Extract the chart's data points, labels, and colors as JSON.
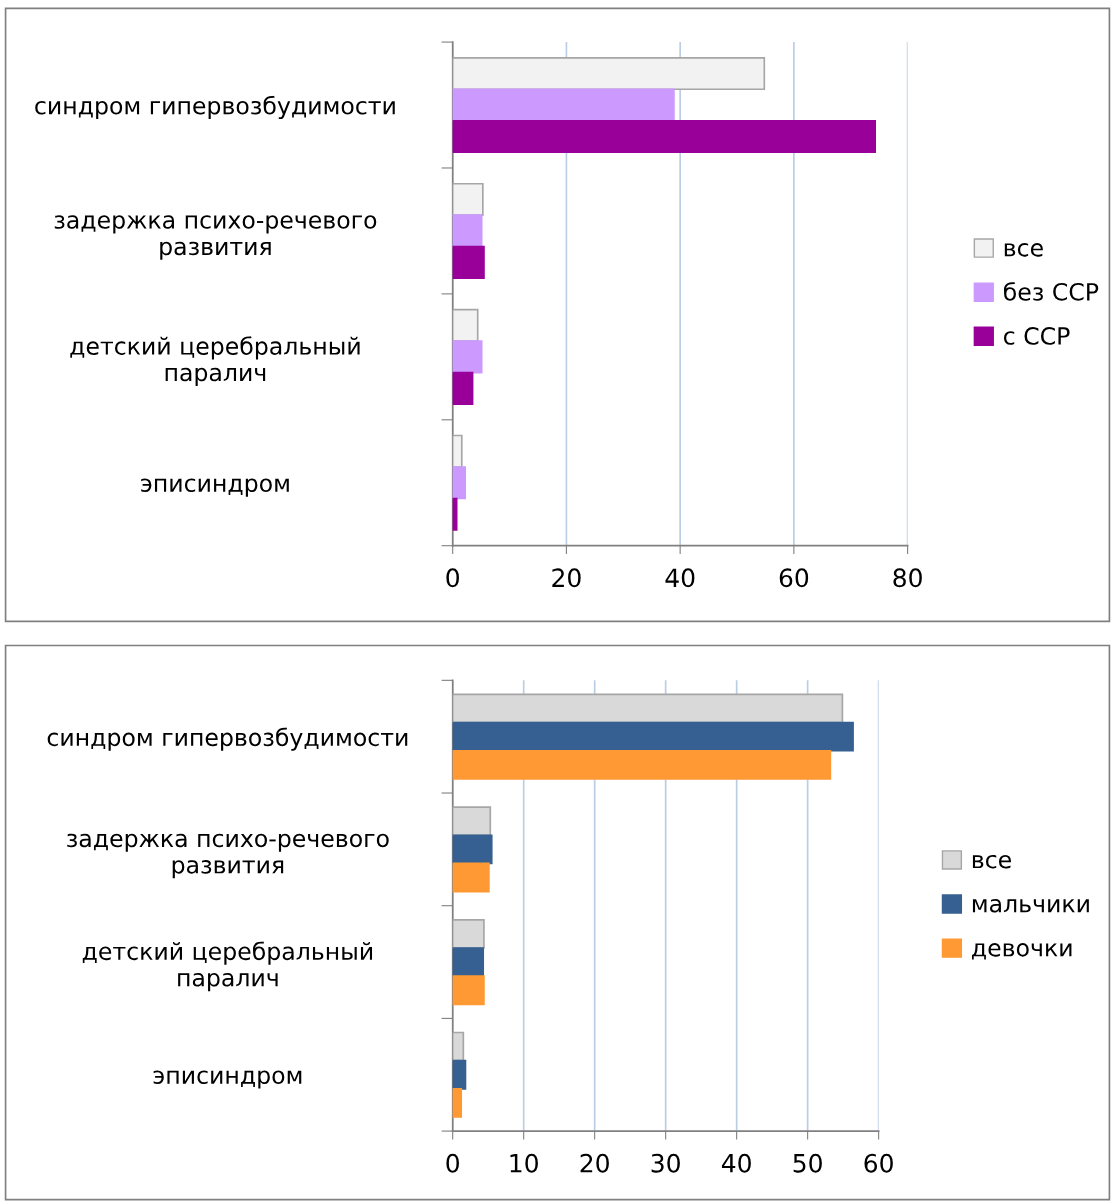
{
  "chart_data": [
    {
      "type": "bar",
      "orientation": "horizontal",
      "categories": [
        "синдром гипервозбудимости",
        "задержка психо-речевого\nразвития",
        "детский церебральный\nпаралич",
        "эписиндром"
      ],
      "series": [
        {
          "name": "все",
          "color": "#f2f2f2",
          "values": [
            54.8,
            5.3,
            4.4,
            1.6
          ]
        },
        {
          "name": "без ССР",
          "color": "#cc99ff",
          "values": [
            38.9,
            5.1,
            5.1,
            2.2
          ]
        },
        {
          "name": "с ССР",
          "color": "#990099",
          "values": [
            74.3,
            5.5,
            3.5,
            0.7
          ]
        }
      ],
      "xlim": [
        0,
        80
      ],
      "xticks": [
        0,
        20,
        40,
        60,
        80
      ],
      "grid": "x",
      "legend": "right"
    },
    {
      "type": "bar",
      "orientation": "horizontal",
      "categories": [
        "синдром гипервозбудимости",
        "задержка психо-речевого\nразвития",
        "детский церебральный\nпаралич",
        "эписиндром"
      ],
      "series": [
        {
          "name": "все",
          "color": "#d9d9d9",
          "values": [
            54.9,
            5.3,
            4.4,
            1.5
          ]
        },
        {
          "name": "мальчики",
          "color": "#376092",
          "values": [
            56.4,
            5.5,
            4.3,
            1.8
          ]
        },
        {
          "name": "девочки",
          "color": "#ff9933",
          "values": [
            53.2,
            5.1,
            4.4,
            1.2
          ]
        }
      ],
      "xlim": [
        0,
        60
      ],
      "xticks": [
        0,
        10,
        20,
        30,
        40,
        50,
        60
      ],
      "grid": "x",
      "legend": "right"
    }
  ]
}
